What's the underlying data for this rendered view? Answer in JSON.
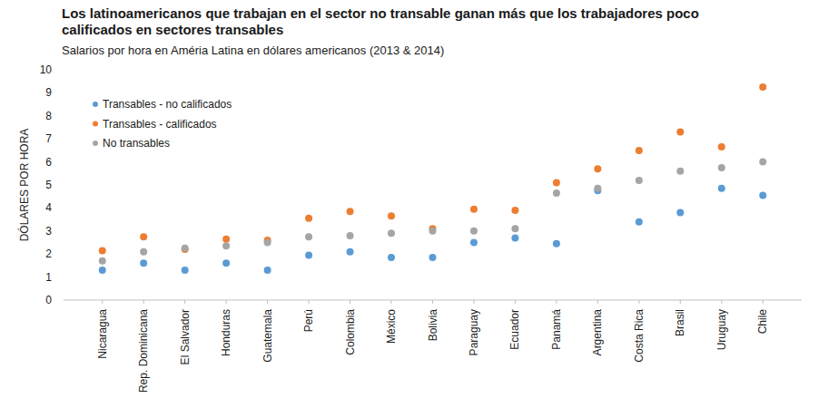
{
  "chart_data": {
    "type": "scatter",
    "title": "Los latinoamericanos que trabajan en el sector no transable ganan más que los trabajadores poco calificados en sectores transables",
    "subtitle": "Salarios por hora en Améria Latina en dólares americanos (2013 & 2014)",
    "y_label": "DÓLARES POR HORA",
    "categories": [
      "Nicaragua",
      "Rep. Dominicana",
      "El Salvador",
      "Honduras",
      "Guatemala",
      "Perú",
      "Colombia",
      "México",
      "Bolivia",
      "Paraguay",
      "Ecuador",
      "Panamá",
      "Argentina",
      "Costa Rica",
      "Brasil",
      "Uruguay",
      "Chile"
    ],
    "series": [
      {
        "name": "Transables - no calificados",
        "color": "#5b9bd5",
        "marker": "circle",
        "values": [
          1.3,
          1.6,
          1.3,
          1.6,
          1.3,
          1.95,
          2.1,
          1.85,
          1.85,
          2.5,
          2.7,
          2.45,
          4.75,
          3.4,
          3.8,
          4.85,
          4.55
        ]
      },
      {
        "name": "Transables - calificados",
        "color": "#ed7d31",
        "marker": "circle",
        "values": [
          2.15,
          2.75,
          2.2,
          2.65,
          2.6,
          3.55,
          3.85,
          3.65,
          3.1,
          3.95,
          3.9,
          5.1,
          5.7,
          6.5,
          7.3,
          6.65,
          9.25
        ]
      },
      {
        "name": "No transables",
        "color": "#a5a5a5",
        "marker": "circle",
        "values": [
          1.7,
          2.1,
          2.25,
          2.35,
          2.5,
          2.75,
          2.8,
          2.9,
          3.0,
          3.0,
          3.1,
          4.65,
          4.85,
          5.2,
          5.6,
          5.75,
          6.0
        ]
      }
    ],
    "ylim": [
      0,
      10
    ],
    "yticks": [
      0,
      1,
      2,
      3,
      4,
      5,
      6,
      7,
      8,
      9,
      10
    ],
    "grid": false,
    "legend": "upper-left"
  }
}
